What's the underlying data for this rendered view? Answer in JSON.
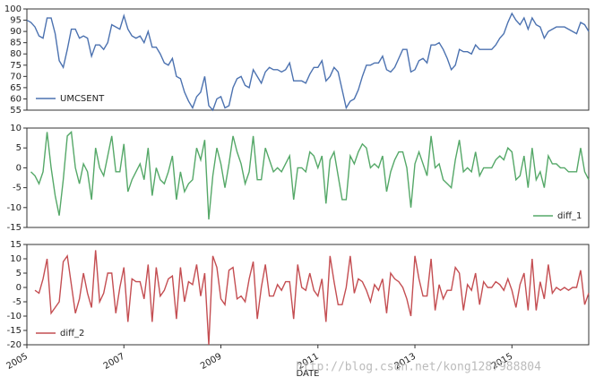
{
  "chart_data": [
    {
      "type": "line",
      "series": [
        {
          "name": "UMCSENT",
          "color": "#4c72b0",
          "values": [
            95,
            94,
            92,
            88,
            87,
            96,
            96,
            89,
            77,
            74,
            82,
            91,
            91,
            87,
            88,
            87,
            79,
            84,
            84,
            82,
            85,
            93,
            92,
            91,
            97,
            91,
            88,
            87,
            88,
            85,
            90,
            83,
            83,
            80,
            76,
            75,
            78,
            70,
            69,
            63,
            59,
            56,
            61,
            63,
            70,
            57,
            55,
            60,
            61,
            56,
            57,
            65,
            69,
            70,
            66,
            65,
            73,
            70,
            67,
            72,
            74,
            73,
            73,
            72,
            73,
            76,
            68,
            68,
            68,
            67,
            71,
            74,
            74,
            77,
            68,
            70,
            74,
            72,
            64,
            56,
            59,
            60,
            64,
            70,
            75,
            75,
            76,
            76,
            79,
            73,
            72,
            74,
            78,
            82,
            82,
            72,
            73,
            77,
            78,
            76,
            84,
            84,
            85,
            82,
            78,
            73,
            75,
            82,
            81,
            81,
            80,
            84,
            82,
            82,
            82,
            82,
            84,
            87,
            89,
            94,
            98,
            95,
            93,
            96,
            91,
            96,
            93,
            92,
            87,
            90,
            91,
            92,
            92,
            92,
            91,
            90,
            89,
            94,
            93,
            90
          ]
        }
      ],
      "ylim": [
        55,
        100
      ],
      "yticks": [
        55,
        60,
        65,
        70,
        75,
        80,
        85,
        90,
        95,
        100
      ],
      "legend": "lower left"
    },
    {
      "type": "line",
      "series": [
        {
          "name": "diff_1",
          "color": "#55a868",
          "values": [
            null,
            -1,
            -2,
            -4,
            -1,
            9,
            0,
            -7,
            -12,
            -3,
            8,
            9,
            0,
            -4,
            1,
            -1,
            -8,
            5,
            0,
            -2,
            3,
            8,
            -1,
            -1,
            6,
            -6,
            -3,
            -1,
            1,
            -3,
            5,
            -7,
            0,
            -3,
            -4,
            -1,
            3,
            -8,
            -1,
            -6,
            -4,
            -3,
            5,
            2,
            7,
            -13,
            -2,
            5,
            1,
            -5,
            1,
            8,
            4,
            1,
            -4,
            -1,
            8,
            -3,
            -3,
            5,
            2,
            -1,
            0,
            -1,
            1,
            3,
            -8,
            0,
            0,
            -1,
            4,
            3,
            0,
            3,
            -9,
            2,
            4,
            -2,
            -8,
            -8,
            3,
            1,
            4,
            6,
            5,
            0,
            1,
            0,
            3,
            -6,
            -1,
            2,
            4,
            4,
            0,
            -10,
            1,
            4,
            1,
            -2,
            8,
            0,
            1,
            -3,
            -4,
            -5,
            2,
            7,
            -1,
            0,
            -1,
            4,
            -2,
            0,
            0,
            0,
            2,
            3,
            2,
            5,
            4,
            -3,
            -2,
            3,
            -5,
            5,
            -3,
            -1,
            -5,
            3,
            1,
            1,
            0,
            0,
            -1,
            -1,
            -1,
            5,
            -1,
            -3
          ]
        }
      ],
      "ylim": [
        -15,
        10
      ],
      "yticks": [
        -15,
        -10,
        -5,
        0,
        5,
        10
      ],
      "legend": "lower right"
    },
    {
      "type": "line",
      "series": [
        {
          "name": "diff_2",
          "color": "#c44e52",
          "values": [
            null,
            null,
            -1,
            -2,
            3,
            10,
            -9,
            -7,
            -5,
            9,
            11,
            1,
            -9,
            -4,
            5,
            -2,
            -7,
            13,
            -5,
            -2,
            5,
            5,
            -9,
            0,
            7,
            -12,
            3,
            2,
            2,
            -4,
            8,
            -12,
            7,
            -3,
            -1,
            3,
            4,
            -11,
            7,
            -5,
            2,
            1,
            8,
            -3,
            5,
            -20,
            11,
            7,
            -4,
            -6,
            6,
            7,
            -4,
            -3,
            -5,
            3,
            9,
            -11,
            0,
            8,
            -3,
            -3,
            1,
            -1,
            2,
            2,
            -11,
            8,
            0,
            -1,
            5,
            -1,
            -3,
            3,
            -12,
            11,
            2,
            -6,
            -6,
            0,
            11,
            -2,
            3,
            2,
            -1,
            -5,
            1,
            -1,
            3,
            -9,
            5,
            3,
            2,
            0,
            -4,
            -10,
            11,
            3,
            -3,
            -3,
            10,
            -8,
            1,
            -4,
            -1,
            -1,
            7,
            5,
            -8,
            1,
            -1,
            5,
            -6,
            2,
            0,
            0,
            2,
            1,
            -1,
            3,
            -1,
            -7,
            1,
            5,
            -8,
            10,
            -8,
            2,
            -4,
            8,
            -2,
            0,
            -1,
            0,
            -1,
            0,
            0,
            6,
            -6,
            -2
          ]
        }
      ],
      "ylim": [
        -20,
        15
      ],
      "yticks": [
        -20,
        -15,
        -10,
        -5,
        0,
        5,
        10,
        15
      ],
      "legend": "lower left",
      "categories": [
        "2005",
        null,
        null,
        null,
        null,
        null,
        null,
        null,
        null,
        null,
        null,
        null,
        null,
        null,
        null,
        null,
        null,
        null,
        null,
        null,
        null,
        null,
        null,
        null,
        "2007",
        null,
        null,
        null,
        null,
        null,
        null,
        null,
        null,
        null,
        null,
        null,
        null,
        null,
        null,
        null,
        null,
        null,
        null,
        null,
        null,
        null,
        null,
        null,
        "2009",
        null,
        null,
        null,
        null,
        null,
        null,
        null,
        null,
        null,
        null,
        null,
        null,
        null,
        null,
        null,
        null,
        null,
        null,
        null,
        null,
        null,
        null,
        null,
        "2011",
        null,
        null,
        null,
        null,
        null,
        null,
        null,
        null,
        null,
        null,
        null,
        null,
        null,
        null,
        null,
        null,
        null,
        null,
        null,
        null,
        null,
        null,
        null,
        "2013",
        null,
        null,
        null,
        null,
        null,
        null,
        null,
        null,
        null,
        null,
        null,
        null,
        null,
        null,
        null,
        null,
        null,
        null,
        null,
        null,
        null,
        null,
        null,
        "2015",
        null,
        null,
        null,
        null,
        null,
        null,
        null,
        null,
        null,
        null,
        null,
        null,
        null,
        null,
        null,
        null,
        null,
        null,
        null
      ],
      "x_label": "DATE"
    }
  ],
  "watermark": "http://blog.csdn.net/kong1287988804"
}
